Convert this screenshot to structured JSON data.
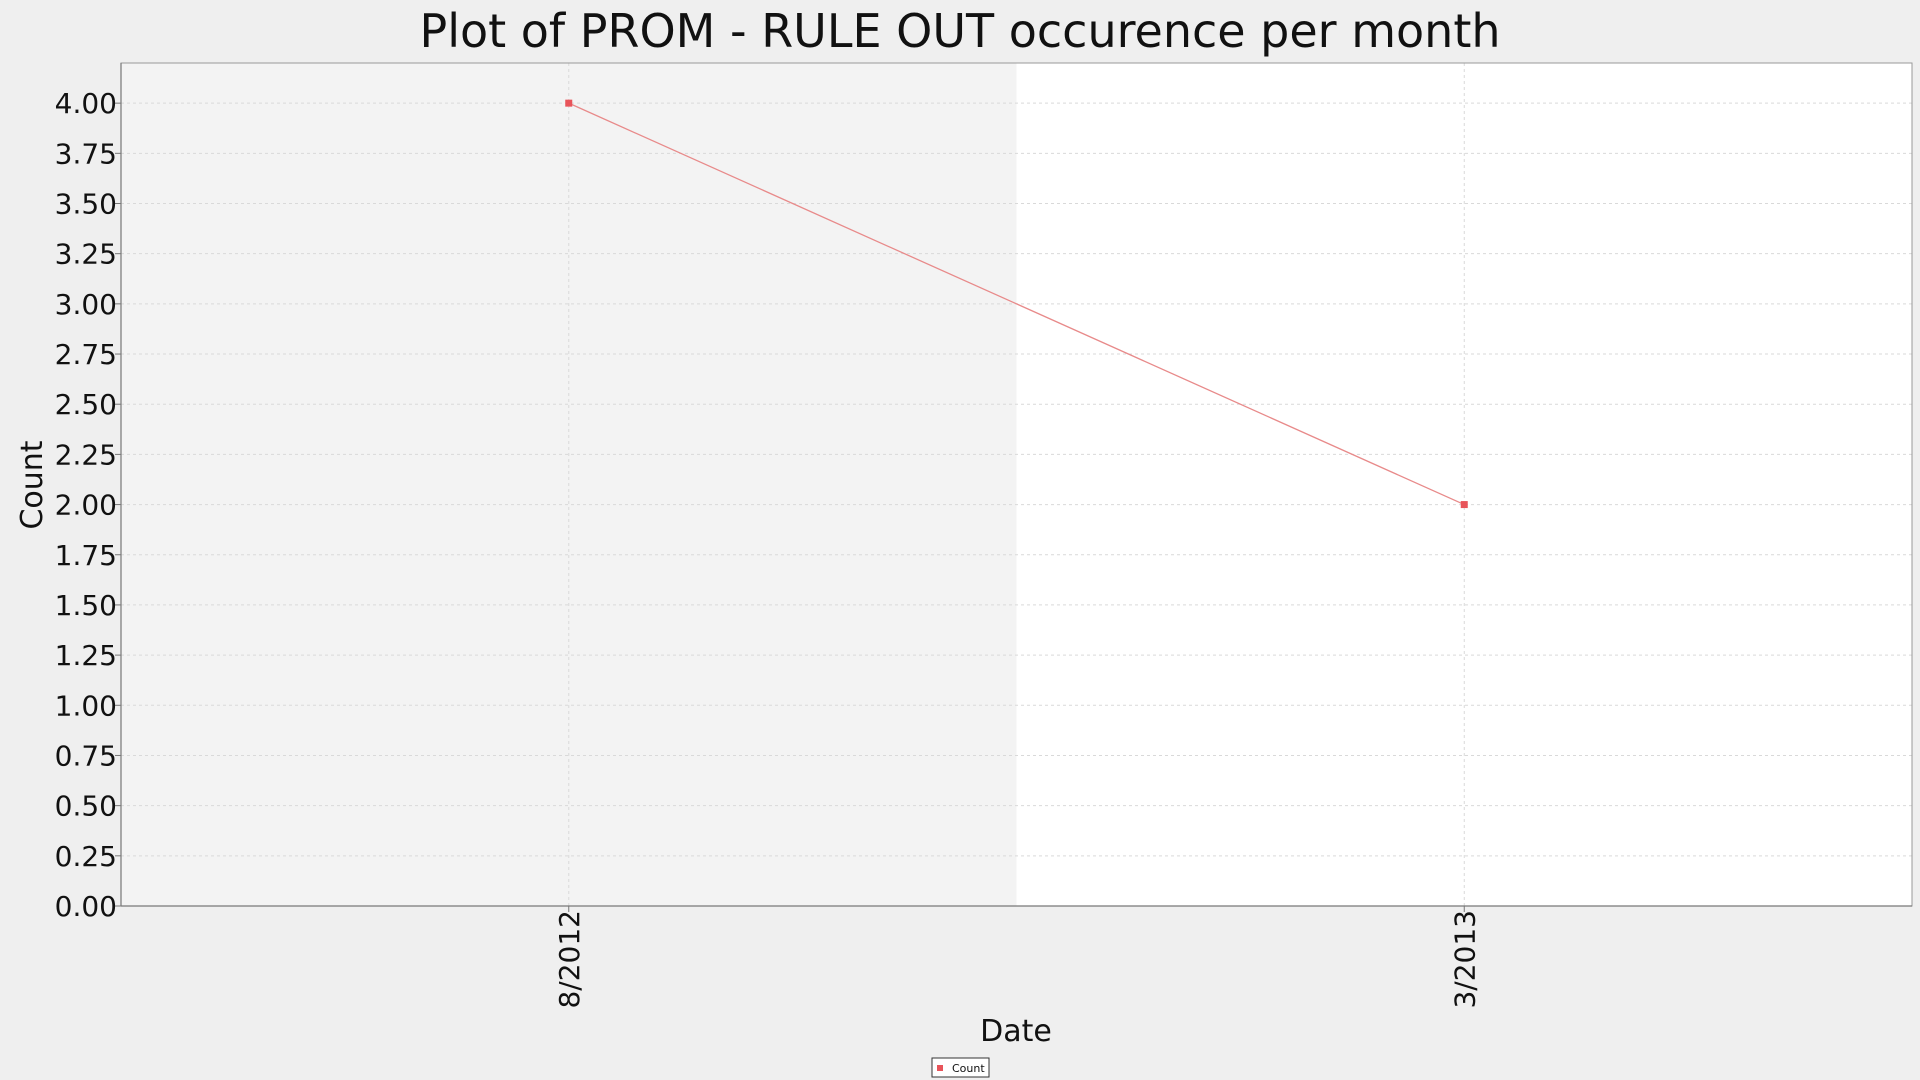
{
  "colors": {
    "page_background": "#efefef",
    "plot_band_odd": "#f3f3f3",
    "plot_band_even": "#ffffff",
    "series": "#e8545a",
    "series_line": "#e88a8a",
    "grid": "#d9d9d9",
    "axis": "#999999"
  },
  "chart_data": {
    "type": "line",
    "title": "Plot of PROM - RULE OUT occurence per month",
    "xlabel": "Date",
    "ylabel": "Count",
    "x_tick_labels": [
      "8/2012",
      "3/2013"
    ],
    "y_ticks": [
      "0.00",
      "0.25",
      "0.50",
      "0.75",
      "1.00",
      "1.25",
      "1.50",
      "1.75",
      "2.00",
      "2.25",
      "2.50",
      "2.75",
      "3.00",
      "3.25",
      "3.50",
      "3.75",
      "4.00"
    ],
    "ylim": [
      0,
      4.2
    ],
    "grid": true,
    "legend_position": "bottom-center",
    "series": [
      {
        "name": "Count",
        "marker": "square",
        "x": [
          "8/2012",
          "3/2013"
        ],
        "y": [
          4,
          2
        ]
      }
    ]
  }
}
